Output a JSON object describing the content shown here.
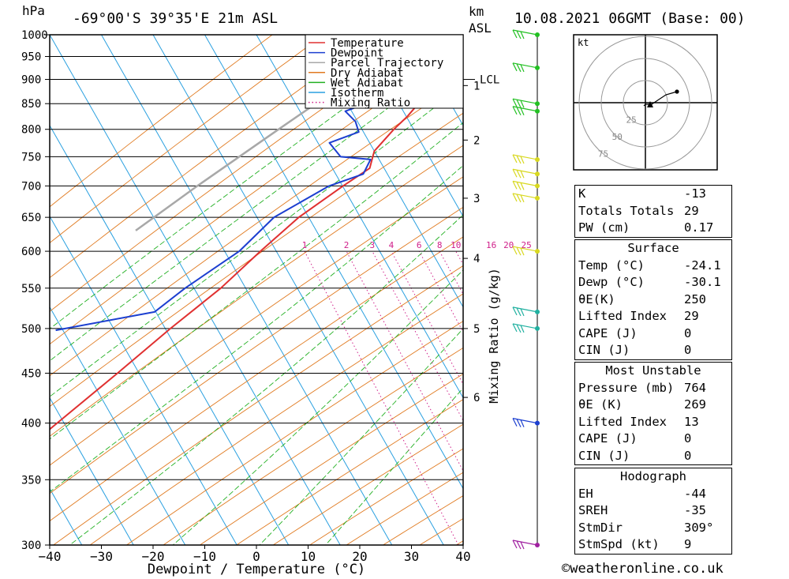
{
  "header": {
    "location": "-69°00'S 39°35'E 21m ASL",
    "datetime": "10.08.2021 06GMT (Base: 00)",
    "p_unit": "hPa",
    "km_unit": "km",
    "asl": "ASL"
  },
  "chart_data": {
    "type": "line",
    "xlabel": "Dewpoint / Temperature (°C)",
    "ylabel_right": "Mixing Ratio (g/kg)",
    "xlim": [
      -40,
      40
    ],
    "ylim": [
      1000,
      300
    ],
    "y_scale": "log",
    "skew": "skew-T",
    "grid": true,
    "x_ticks": [
      "−40",
      "−30",
      "−20",
      "−10",
      "0",
      "10",
      "20",
      "30",
      "40"
    ],
    "pressure_levels": [
      "300",
      "350",
      "400",
      "450",
      "500",
      "550",
      "600",
      "650",
      "700",
      "750",
      "800",
      "850",
      "900",
      "950",
      "1000"
    ],
    "km_ticks": [
      {
        "km": "1",
        "p": 887
      },
      {
        "km": "2",
        "p": 780
      },
      {
        "km": "3",
        "p": 680
      },
      {
        "km": "4",
        "p": 590
      },
      {
        "km": "5",
        "p": 500
      },
      {
        "km": "6",
        "p": 425
      }
    ],
    "lcl": {
      "label": "LCL",
      "p": 900
    },
    "mixing_ratio_labels": [
      "1",
      "2",
      "3",
      "4",
      "6",
      "8",
      "10",
      "16",
      "20",
      "25"
    ],
    "mixing_ratio_values": [
      1,
      2,
      3,
      4,
      6,
      8,
      10,
      16,
      20,
      25
    ],
    "legend": {
      "placement": "top-right",
      "entries": [
        {
          "name": "Temperature",
          "color": "#e03030",
          "style": "solid"
        },
        {
          "name": "Dewpoint",
          "color": "#1c3fd0",
          "style": "solid"
        },
        {
          "name": "Parcel Trajectory",
          "color": "#a8a8a8",
          "style": "solid"
        },
        {
          "name": "Dry Adiabat",
          "color": "#e07a20",
          "style": "solid"
        },
        {
          "name": "Wet Adiabat",
          "color": "#22b022",
          "style": "solid"
        },
        {
          "name": "Isotherm",
          "color": "#2aa0e0",
          "style": "solid"
        },
        {
          "name": "Mixing Ratio",
          "color": "#d0208a",
          "style": "dotted"
        }
      ]
    },
    "temperature": [
      {
        "p": 1000,
        "t": -24.1
      },
      {
        "p": 975,
        "t": -22.5
      },
      {
        "p": 950,
        "t": -23.0
      },
      {
        "p": 925,
        "t": -22.7
      },
      {
        "p": 900,
        "t": -21.7
      },
      {
        "p": 875,
        "t": -19.6
      },
      {
        "p": 850,
        "t": -17.3
      },
      {
        "p": 825,
        "t": -18.0
      },
      {
        "p": 800,
        "t": -19.2
      },
      {
        "p": 760,
        "t": -20.6
      },
      {
        "p": 730,
        "t": -19.6
      },
      {
        "p": 700,
        "t": -22.8
      },
      {
        "p": 650,
        "t": -27.9
      },
      {
        "p": 600,
        "t": -31.6
      },
      {
        "p": 550,
        "t": -35.2
      },
      {
        "p": 500,
        "t": -40.5
      },
      {
        "p": 450,
        "t": -45.8
      },
      {
        "p": 400,
        "t": -52.0
      },
      {
        "p": 350,
        "t": -58.8
      },
      {
        "p": 300,
        "t": -66.1
      }
    ],
    "dewpoint": [
      {
        "p": 1000,
        "t": -30.1
      },
      {
        "p": 950,
        "t": -30.6
      },
      {
        "p": 900,
        "t": -29.8
      },
      {
        "p": 880,
        "t": -25.5
      },
      {
        "p": 850,
        "t": -27.4
      },
      {
        "p": 835,
        "t": -30.6
      },
      {
        "p": 815,
        "t": -27.5
      },
      {
        "p": 795,
        "t": -25.7
      },
      {
        "p": 775,
        "t": -30.2
      },
      {
        "p": 750,
        "t": -26.5
      },
      {
        "p": 745,
        "t": -20.4
      },
      {
        "p": 720,
        "t": -20.2
      },
      {
        "p": 700,
        "t": -25.5
      },
      {
        "p": 650,
        "t": -32.7
      },
      {
        "p": 600,
        "t": -35.7
      },
      {
        "p": 550,
        "t": -42.1
      },
      {
        "p": 520,
        "t": -45.4
      },
      {
        "p": 498,
        "t": -62.5
      }
    ],
    "parcel": [
      {
        "p": 1000,
        "t": -24.1
      },
      {
        "p": 900,
        "t": -33.0
      },
      {
        "p": 800,
        "t": -41.5
      },
      {
        "p": 700,
        "t": -51.0
      },
      {
        "p": 630,
        "t": -58.0
      }
    ],
    "wind_profile_pressures": [
      300,
      400,
      500,
      520,
      600,
      680,
      700,
      720,
      745,
      835,
      850,
      925,
      1000
    ]
  },
  "hodograph": {
    "unit": "kt",
    "rings": [
      "25",
      "50",
      "75"
    ]
  },
  "indices": {
    "k_label": "K",
    "k": "-13",
    "tt_label": "Totals Totals",
    "tt": "29",
    "pw_label": "PW (cm)",
    "pw": "0.17"
  },
  "surface": {
    "title": "Surface",
    "temp_label": "Temp (°C)",
    "temp": "-24.1",
    "dewp_label": "Dewp (°C)",
    "dewp": "-30.1",
    "thetae_label": "θE(K)",
    "thetae": "250",
    "li_label": "Lifted Index",
    "li": "29",
    "cape_label": "CAPE (J)",
    "cape": "0",
    "cin_label": "CIN (J)",
    "cin": "0"
  },
  "most_unstable": {
    "title": "Most Unstable",
    "pressure_label": "Pressure (mb)",
    "pressure": "764",
    "thetae_label": "θE (K)",
    "thetae": "269",
    "li_label": "Lifted Index",
    "li": "13",
    "cape_label": "CAPE (J)",
    "cape": "0",
    "cin_label": "CIN (J)",
    "cin": "0"
  },
  "hodograph_table": {
    "title": "Hodograph",
    "eh_label": "EH",
    "eh": "-44",
    "sreh_label": "SREH",
    "sreh": "-35",
    "stmdir_label": "StmDir",
    "stmdir": "309°",
    "stmspd_label": "StmSpd (kt)",
    "stmspd": "9"
  },
  "footer": {
    "copyright": "©weatheronline.co.uk"
  },
  "colors": {
    "temperature": "#e03030",
    "dewpoint": "#1c3fd0",
    "parcel": "#a8a8a8",
    "dry": "#e07a20",
    "wet": "#22b022",
    "iso": "#2aa0e0",
    "mix": "#d0208a"
  }
}
